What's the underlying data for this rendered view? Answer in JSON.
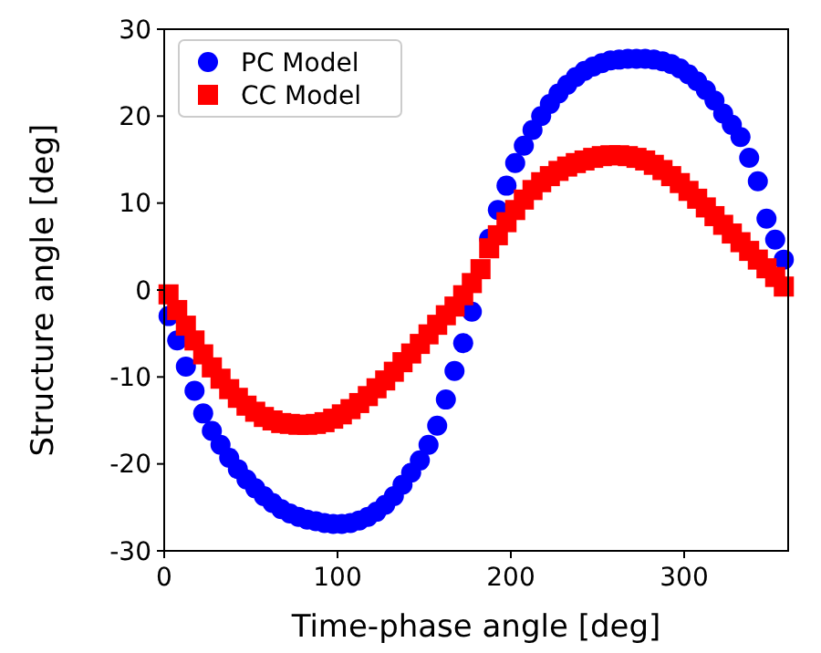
{
  "chart_data": {
    "type": "scatter",
    "xlabel": "Time-phase angle [deg]",
    "ylabel": "Structure angle [deg]",
    "x": [
      2.5,
      7.5,
      12.5,
      17.5,
      22.5,
      27.5,
      32.5,
      37.5,
      42.5,
      47.5,
      52.5,
      57.5,
      62.5,
      67.5,
      72.5,
      77.5,
      82.5,
      87.5,
      92.5,
      97.5,
      102.5,
      107.5,
      112.5,
      117.5,
      122.5,
      127.5,
      132.5,
      137.5,
      142.5,
      147.5,
      152.5,
      157.5,
      162.5,
      167.5,
      172.5,
      177.5,
      182.5,
      187.5,
      192.5,
      197.5,
      202.5,
      207.5,
      212.5,
      217.5,
      222.5,
      227.5,
      232.5,
      237.5,
      242.5,
      247.5,
      252.5,
      257.5,
      262.5,
      267.5,
      272.5,
      277.5,
      282.5,
      287.5,
      292.5,
      297.5,
      302.5,
      307.5,
      312.5,
      317.5,
      322.5,
      327.5,
      332.5,
      337.5,
      342.5,
      347.5,
      352.5,
      357.5
    ],
    "series": [
      {
        "name": "PC Model",
        "color": "#0000ff",
        "marker": "circle",
        "values": [
          -3,
          -5.8,
          -8.8,
          -11.6,
          -14.2,
          -16.2,
          -17.8,
          -19.3,
          -20.6,
          -21.8,
          -22.8,
          -23.7,
          -24.5,
          -25.2,
          -25.7,
          -26.1,
          -26.4,
          -26.6,
          -26.8,
          -26.9,
          -26.9,
          -26.8,
          -26.5,
          -26.1,
          -25.5,
          -24.7,
          -23.7,
          -22.4,
          -21,
          -19.6,
          -17.8,
          -15.6,
          -12.6,
          -9.3,
          -6.1,
          -2.5,
          null,
          5.9,
          9.2,
          12,
          14.6,
          16.6,
          18.4,
          20,
          21.4,
          22.6,
          23.6,
          24.5,
          25.2,
          25.7,
          26.1,
          26.4,
          26.5,
          26.6,
          26.6,
          26.6,
          26.5,
          26.3,
          26,
          25.5,
          24.8,
          24,
          23,
          21.8,
          20.3,
          19,
          17.6,
          15.2,
          12.5,
          8.2,
          5.8,
          3.5
        ]
      },
      {
        "name": "CC Model",
        "color": "#ff0000",
        "marker": "square",
        "values": [
          -0.5,
          -2.3,
          -4.1,
          -5.8,
          -7.4,
          -8.9,
          -10.2,
          -11.4,
          -12.4,
          -13.3,
          -14,
          -14.6,
          -15,
          -15.3,
          -15.4,
          -15.5,
          -15.5,
          -15.4,
          -15.2,
          -14.8,
          -14.3,
          -13.7,
          -13,
          -12.2,
          -11.3,
          -10.4,
          -9.4,
          -8.3,
          -7.3,
          -6.2,
          -5.1,
          -4,
          -2.9,
          -1.9,
          -0.6,
          0.8,
          2.4,
          4.8,
          6.3,
          7.8,
          9.2,
          10.4,
          11.5,
          12.4,
          13.1,
          13.7,
          14.2,
          14.6,
          14.9,
          15.2,
          15.4,
          15.5,
          15.5,
          15.4,
          15.2,
          14.9,
          14.4,
          13.8,
          13.1,
          12.3,
          11.4,
          10.5,
          9.5,
          8.5,
          7.5,
          6.5,
          5.5,
          4.5,
          3.5,
          2.5,
          1.5,
          0.4
        ]
      }
    ],
    "xlim": [
      0,
      360
    ],
    "ylim": [
      -30,
      30
    ],
    "xticks": [
      0,
      100,
      200,
      300
    ],
    "yticks": [
      -30,
      -20,
      -10,
      0,
      10,
      20,
      30
    ],
    "legend": "top left",
    "grid": false
  }
}
